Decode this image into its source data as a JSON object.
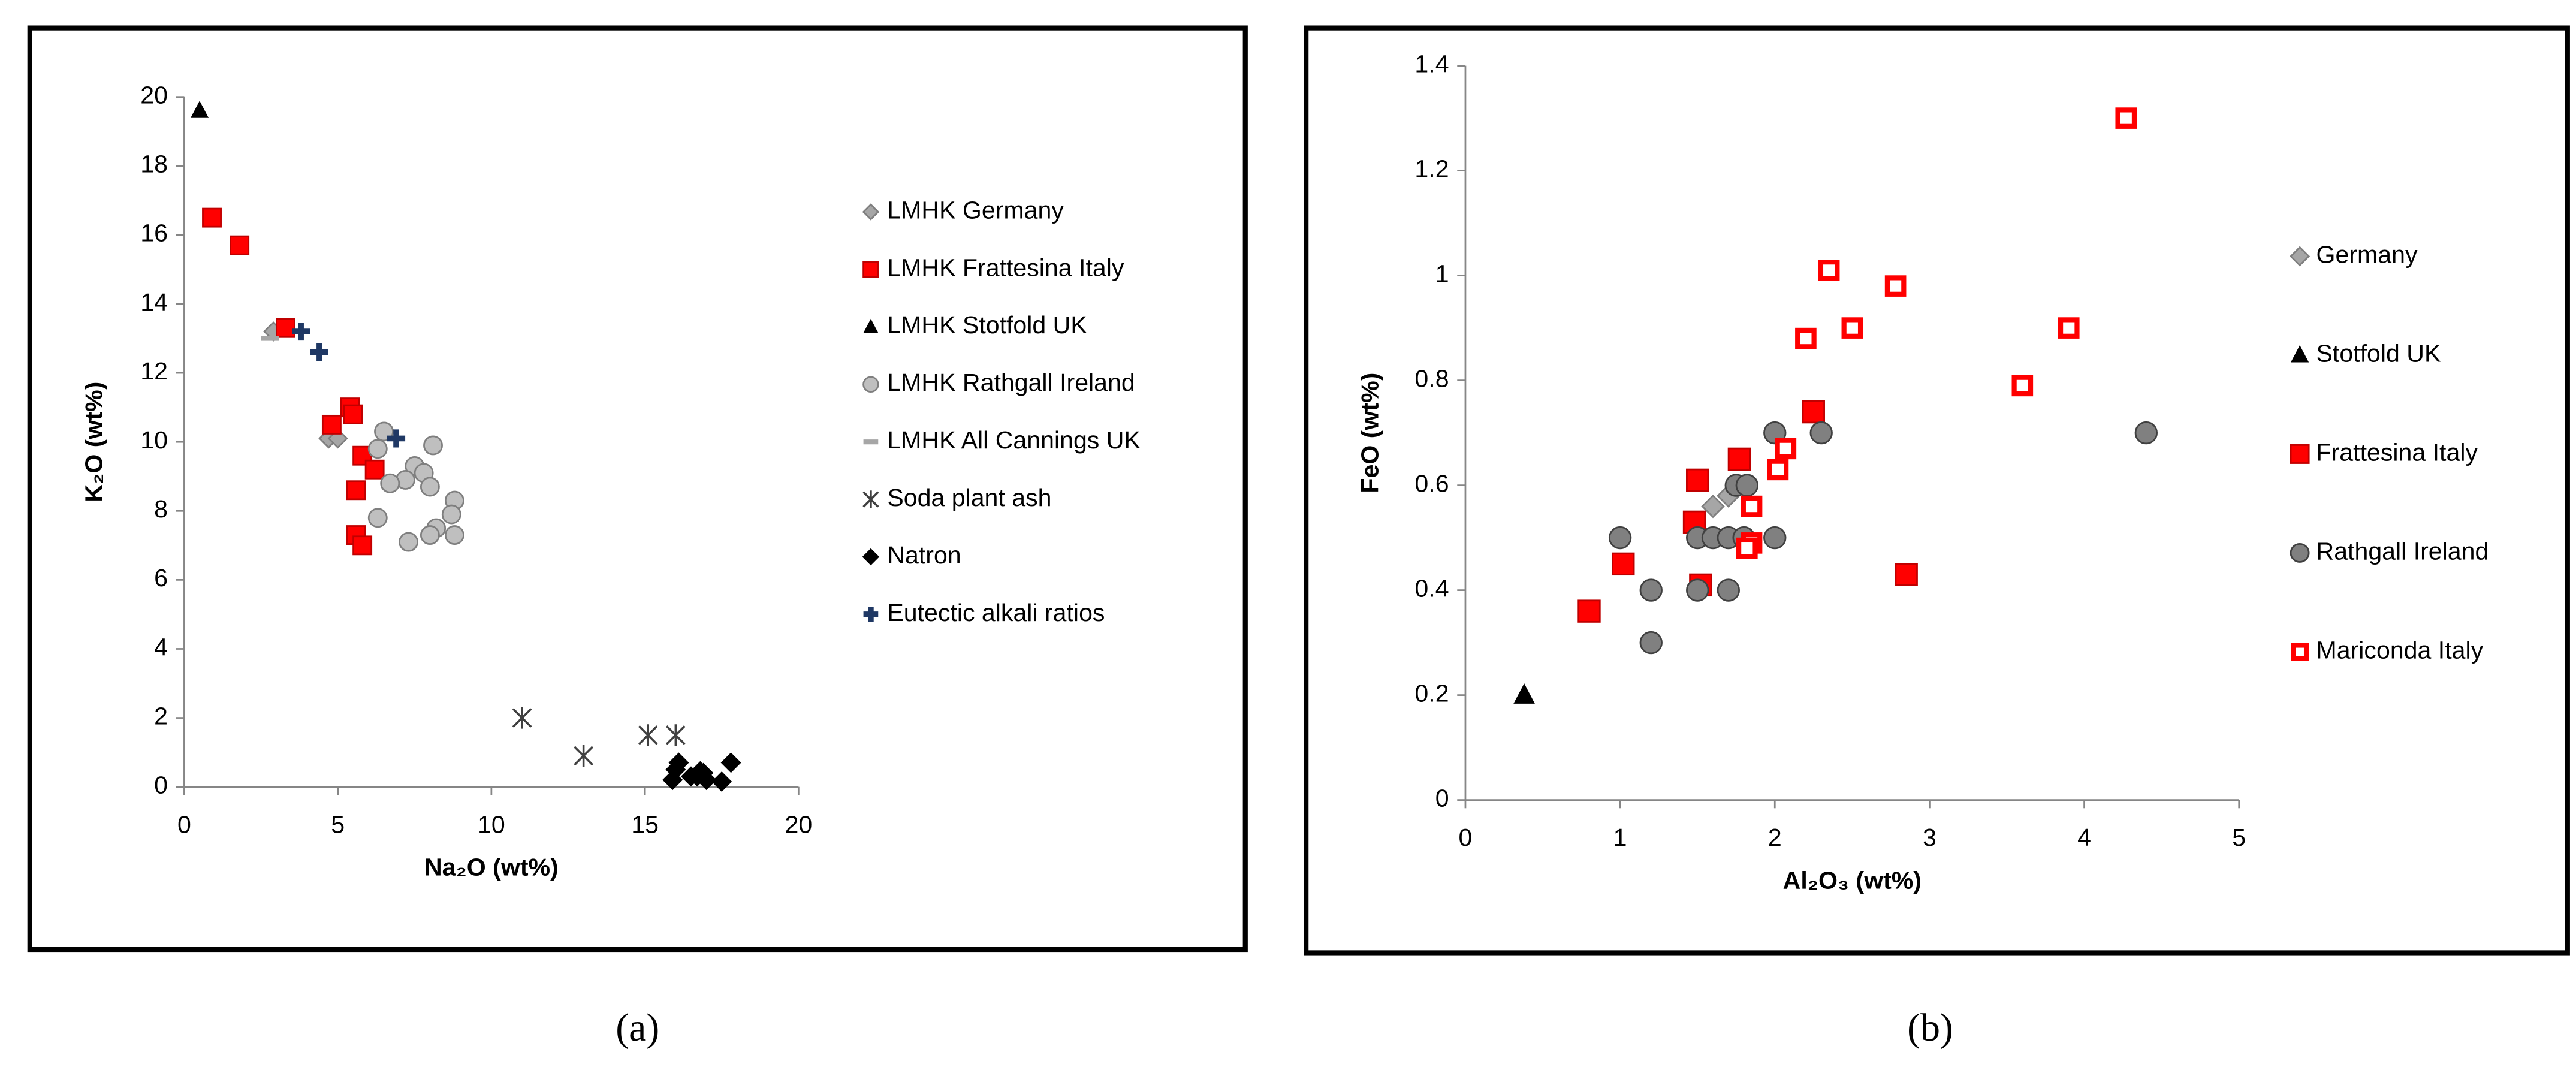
{
  "chart_data": [
    {
      "type": "scatter",
      "caption": "(a)",
      "x_label": "Na₂O (wt%)",
      "y_label": "K₂O (wt%)",
      "xlim": [
        0,
        20
      ],
      "xticks": [
        0,
        5,
        10,
        15,
        20
      ],
      "ylim": [
        0,
        20
      ],
      "yticks": [
        0,
        2,
        4,
        6,
        8,
        10,
        12,
        14,
        16,
        18,
        20
      ],
      "grid": false,
      "legend": "right",
      "series": [
        {
          "name": "LMHK Germany",
          "color": "#a6a6a6",
          "marker": "diamond",
          "x": [
            2.9,
            4.7,
            5.0
          ],
          "values": [
            13.2,
            10.1,
            10.1
          ]
        },
        {
          "name": "LMHK Frattesina Italy",
          "color": "#ff0000",
          "marker": "square",
          "x": [
            0.9,
            1.8,
            3.3,
            4.8,
            5.4,
            5.5,
            5.8,
            6.2,
            5.6,
            5.6,
            5.8
          ],
          "values": [
            16.5,
            15.7,
            13.3,
            10.5,
            11.0,
            10.8,
            9.6,
            9.2,
            8.6,
            7.3,
            7.0
          ]
        },
        {
          "name": "LMHK Stotfold UK",
          "color": "#000000",
          "marker": "triangle",
          "x": [
            0.5
          ],
          "values": [
            19.6
          ]
        },
        {
          "name": "LMHK Rathgall Ireland",
          "color": "#bfbfbf",
          "marker": "circle",
          "x": [
            6.5,
            6.3,
            8.1,
            7.5,
            7.8,
            7.2,
            6.7,
            8.0,
            8.8,
            6.3,
            8.7,
            8.2,
            8.0,
            8.8,
            7.3
          ],
          "values": [
            10.3,
            9.8,
            9.9,
            9.3,
            9.1,
            8.9,
            8.8,
            8.7,
            8.3,
            7.8,
            7.9,
            7.5,
            7.3,
            7.3,
            7.1
          ]
        },
        {
          "name": "LMHK All Cannings UK",
          "color": "#a6a6a6",
          "marker": "dash",
          "x": [
            2.8
          ],
          "values": [
            13.0
          ]
        },
        {
          "name": "Soda plant ash",
          "color": "#404040",
          "marker": "asterisk",
          "x": [
            11.0,
            13.0,
            15.1,
            16.0
          ],
          "values": [
            2.0,
            0.9,
            1.5,
            1.5
          ]
        },
        {
          "name": "Natron",
          "color": "#000000",
          "marker": "diamond",
          "x": [
            15.9,
            16.0,
            16.1,
            16.5,
            16.8,
            17.0,
            16.7,
            17.5,
            17.8,
            16.9
          ],
          "values": [
            0.2,
            0.5,
            0.7,
            0.3,
            0.45,
            0.2,
            0.3,
            0.15,
            0.7,
            0.4
          ]
        },
        {
          "name": "Eutectic alkali ratios",
          "color": "#1f3864",
          "marker": "plus",
          "x": [
            3.8,
            4.4,
            6.9
          ],
          "values": [
            13.2,
            12.6,
            10.1
          ]
        }
      ]
    },
    {
      "type": "scatter",
      "caption": "(b)",
      "x_label": "Al₂O₃ (wt%)",
      "y_label": "FeO (wt%)",
      "xlim": [
        0,
        5
      ],
      "xticks": [
        0,
        1,
        2,
        3,
        4,
        5
      ],
      "ylim": [
        0,
        1.4
      ],
      "yticks": [
        0,
        0.2,
        0.4,
        0.6,
        0.8,
        1,
        1.2,
        1.4
      ],
      "grid": false,
      "legend": "right",
      "series": [
        {
          "name": "Germany",
          "color": "#a6a6a6",
          "marker": "diamond",
          "x": [
            1.6,
            1.7
          ],
          "values": [
            0.56,
            0.58
          ]
        },
        {
          "name": "Stotfold UK",
          "color": "#000000",
          "marker": "triangle",
          "x": [
            0.38
          ],
          "values": [
            0.2
          ]
        },
        {
          "name": "Frattesina Italy",
          "color": "#ff0000",
          "marker": "square",
          "x": [
            0.8,
            1.02,
            1.5,
            1.48,
            1.52,
            1.77,
            2.25,
            2.85
          ],
          "values": [
            0.36,
            0.45,
            0.61,
            0.53,
            0.41,
            0.65,
            0.74,
            0.43
          ]
        },
        {
          "name": "Rathgall Ireland",
          "color": "#808080",
          "marker": "circle",
          "x": [
            1.0,
            1.2,
            1.2,
            1.5,
            1.5,
            1.6,
            1.7,
            1.7,
            1.75,
            1.82,
            1.8,
            2.0,
            2.0,
            2.3,
            4.4
          ],
          "values": [
            0.5,
            0.4,
            0.3,
            0.5,
            0.4,
            0.5,
            0.5,
            0.4,
            0.6,
            0.6,
            0.5,
            0.5,
            0.7,
            0.7,
            0.7
          ]
        },
        {
          "name": "Mariconda Italy",
          "color": "#ff0000",
          "marker": "open-square",
          "x": [
            4.27,
            2.35,
            2.78,
            2.5,
            2.2,
            3.9,
            3.6,
            2.07,
            2.02,
            1.85,
            1.85,
            1.82
          ],
          "values": [
            1.3,
            1.01,
            0.98,
            0.9,
            0.88,
            0.9,
            0.79,
            0.67,
            0.63,
            0.56,
            0.49,
            0.48
          ]
        }
      ]
    }
  ]
}
